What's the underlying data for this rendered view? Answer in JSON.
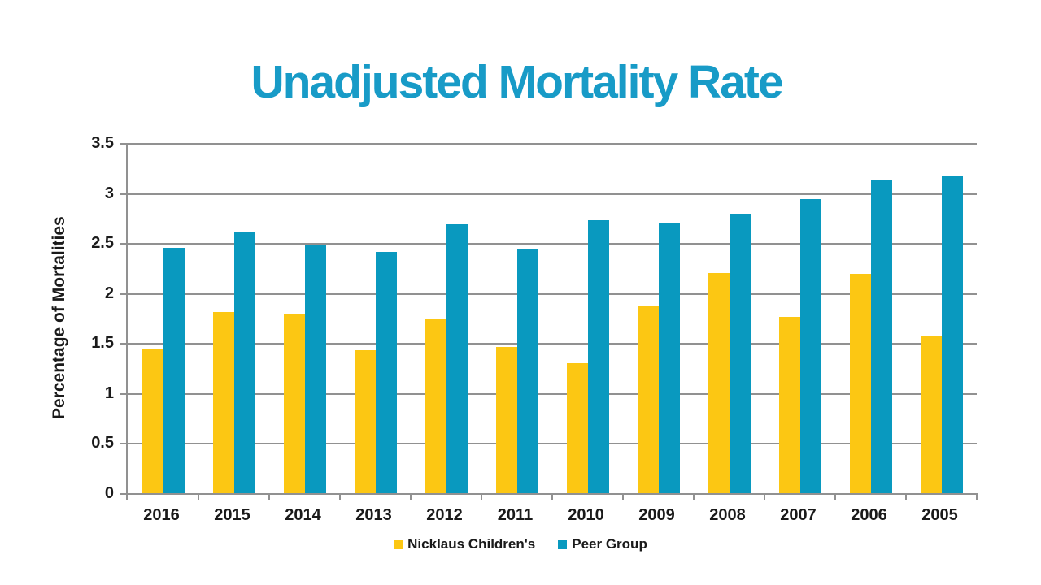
{
  "colors": {
    "title": "#189BC7",
    "grid": "#919191",
    "axis_text": "#1A1A1A",
    "background": "#FFFFFF"
  },
  "chart_data": {
    "type": "bar",
    "title": "Unadjusted Mortality Rate",
    "xlabel": "",
    "ylabel": "Percentage of Mortalities",
    "ylim": [
      0,
      3.5
    ],
    "ytick_step": 0.5,
    "yticks": [
      "3.5",
      "3",
      "2.5",
      "2",
      "1.5",
      "1",
      "0.5",
      "0"
    ],
    "grid": true,
    "legend_position": "bottom",
    "categories": [
      "2016",
      "2015",
      "2014",
      "2013",
      "2012",
      "2011",
      "2010",
      "2009",
      "2008",
      "2007",
      "2006",
      "2005"
    ],
    "series": [
      {
        "name": "Nicklaus Children's",
        "color": "#FCC713",
        "values": [
          1.44,
          1.81,
          1.79,
          1.43,
          1.74,
          1.46,
          1.3,
          1.88,
          2.2,
          1.76,
          2.19,
          1.57
        ]
      },
      {
        "name": "Peer Group",
        "color": "#0999BF",
        "values": [
          2.45,
          2.61,
          2.48,
          2.41,
          2.69,
          2.44,
          2.73,
          2.7,
          2.79,
          2.94,
          3.13,
          3.17
        ]
      }
    ]
  }
}
